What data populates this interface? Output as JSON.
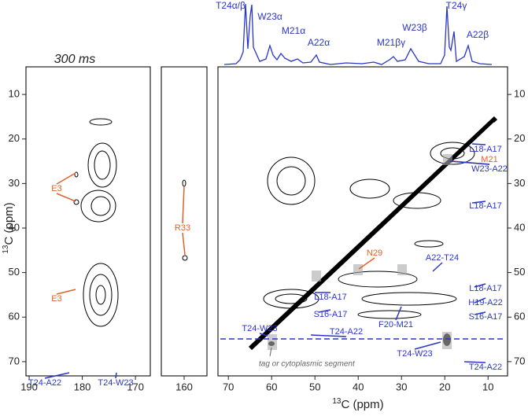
{
  "title": "300 ms",
  "axis_isotope": "13",
  "x_axis_label": "C (ppm)",
  "y_axis_label": "C (ppm)",
  "note": "tag or cytoplasmic segment",
  "trace_labels": [
    "T24α/β",
    "W23α",
    "M21α",
    "A22α",
    "M21βγ",
    "W23β",
    "T24γ",
    "A22β"
  ],
  "panels": [
    {
      "xlim": [
        190.6,
        167.2
      ],
      "xticks": [
        190,
        180,
        170
      ],
      "ylim": [
        3.8,
        73.2
      ],
      "yticks": [
        10,
        20,
        30,
        40,
        50,
        60,
        70
      ],
      "annotations": [
        "E3",
        "E3",
        "T24-A22",
        "T24-W23"
      ]
    },
    {
      "xlim": [
        164.3,
        155.7
      ],
      "xticks": [
        160
      ],
      "ylim": [
        3.8,
        73.2
      ],
      "annotations": [
        "R33"
      ]
    },
    {
      "xlim": [
        72.4,
        5.5
      ],
      "xticks": [
        70,
        60,
        50,
        40,
        30,
        20,
        10
      ],
      "ylim": [
        3.8,
        73.2
      ],
      "yticks": [
        10,
        20,
        30,
        40,
        50,
        60,
        70
      ],
      "annotations": [
        "L18-A17",
        "M21",
        "W23-A22",
        "L18-A17",
        "N29",
        "A22-T24",
        "L18-A17",
        "H19-A22",
        "S16-A17",
        "L18-A17",
        "S16-A17",
        "F20-M21",
        "T24-W23",
        "T24-A22",
        "T24-W23",
        "T24-A22"
      ]
    }
  ]
}
